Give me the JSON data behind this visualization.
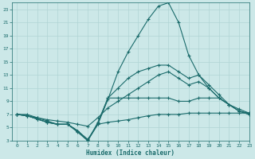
{
  "xlabel": "Humidex (Indice chaleur)",
  "bg_color": "#cce8e8",
  "grid_color": "#b0d4d4",
  "line_color": "#1a6b6b",
  "xlim": [
    -0.5,
    23
  ],
  "ylim": [
    3,
    24
  ],
  "xticks": [
    0,
    1,
    2,
    3,
    4,
    5,
    6,
    7,
    8,
    9,
    10,
    11,
    12,
    13,
    14,
    15,
    16,
    17,
    18,
    19,
    20,
    21,
    22,
    23
  ],
  "yticks": [
    3,
    5,
    7,
    9,
    11,
    13,
    15,
    17,
    19,
    21,
    23
  ],
  "lines": [
    [
      7,
      7,
      6.5,
      6,
      5.5,
      5.5,
      4.5,
      3.2,
      5.5,
      5.8,
      6.0,
      6.2,
      6.5,
      6.8,
      7.0,
      7.0,
      7.0,
      7.2,
      7.2,
      7.2,
      7.2,
      7.2,
      7.2,
      7.2
    ],
    [
      7,
      6.8,
      6.5,
      6.2,
      6.0,
      5.8,
      5.5,
      5.2,
      6.5,
      8.0,
      9.0,
      10.0,
      11.0,
      12.0,
      13.0,
      13.5,
      12.5,
      11.5,
      12.0,
      11.0,
      9.5,
      8.5,
      7.8,
      7.2
    ],
    [
      7,
      6.8,
      6.3,
      5.8,
      5.5,
      5.5,
      4.5,
      3.0,
      5.8,
      9.5,
      9.5,
      9.5,
      9.5,
      9.5,
      9.5,
      9.5,
      9.0,
      9.0,
      9.5,
      9.5,
      9.5,
      8.5,
      7.5,
      7.2
    ],
    [
      7,
      6.8,
      6.3,
      5.8,
      5.5,
      5.5,
      4.3,
      3.0,
      5.5,
      9.3,
      13.5,
      16.5,
      19.0,
      21.5,
      23.5,
      24.0,
      21.0,
      16.0,
      13.0,
      11.0,
      9.5,
      8.5,
      7.5,
      7.0
    ],
    [
      7,
      6.8,
      6.3,
      5.8,
      5.5,
      5.5,
      4.5,
      3.1,
      5.6,
      9.5,
      11.0,
      12.5,
      13.5,
      14.0,
      14.5,
      14.5,
      13.5,
      12.5,
      13.0,
      11.5,
      10.0,
      8.5,
      7.5,
      7.0
    ]
  ]
}
